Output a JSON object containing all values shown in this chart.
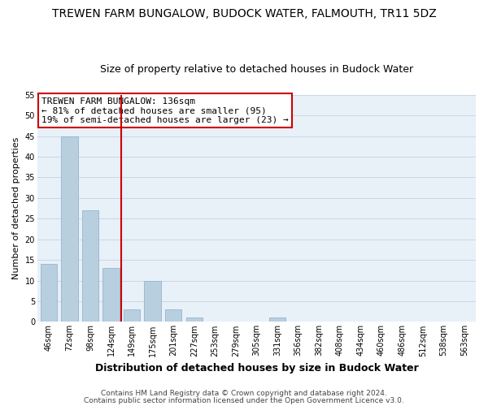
{
  "title": "TREWEN FARM BUNGALOW, BUDOCK WATER, FALMOUTH, TR11 5DZ",
  "subtitle": "Size of property relative to detached houses in Budock Water",
  "xlabel": "Distribution of detached houses by size in Budock Water",
  "ylabel": "Number of detached properties",
  "bin_labels": [
    "46sqm",
    "72sqm",
    "98sqm",
    "124sqm",
    "149sqm",
    "175sqm",
    "201sqm",
    "227sqm",
    "253sqm",
    "279sqm",
    "305sqm",
    "331sqm",
    "356sqm",
    "382sqm",
    "408sqm",
    "434sqm",
    "460sqm",
    "486sqm",
    "512sqm",
    "538sqm",
    "563sqm"
  ],
  "bar_heights": [
    14,
    45,
    27,
    13,
    3,
    10,
    3,
    1,
    0,
    0,
    0,
    1,
    0,
    0,
    0,
    0,
    0,
    0,
    0,
    0,
    0
  ],
  "bar_color": "#b8cfe0",
  "bar_edge_color": "#8baec8",
  "grid_color": "#c8d8e8",
  "background_color": "#e8f0f8",
  "property_line_color": "#cc0000",
  "annotation_text": "TREWEN FARM BUNGALOW: 136sqm\n← 81% of detached houses are smaller (95)\n19% of semi-detached houses are larger (23) →",
  "annotation_box_color": "#ffffff",
  "annotation_box_edge_color": "#cc0000",
  "ylim": [
    0,
    55
  ],
  "yticks": [
    0,
    5,
    10,
    15,
    20,
    25,
    30,
    35,
    40,
    45,
    50,
    55
  ],
  "footer_line1": "Contains HM Land Registry data © Crown copyright and database right 2024.",
  "footer_line2": "Contains public sector information licensed under the Open Government Licence v3.0.",
  "title_fontsize": 10,
  "subtitle_fontsize": 9,
  "xlabel_fontsize": 9,
  "ylabel_fontsize": 8,
  "tick_fontsize": 7,
  "footer_fontsize": 6.5,
  "annotation_fontsize": 8
}
